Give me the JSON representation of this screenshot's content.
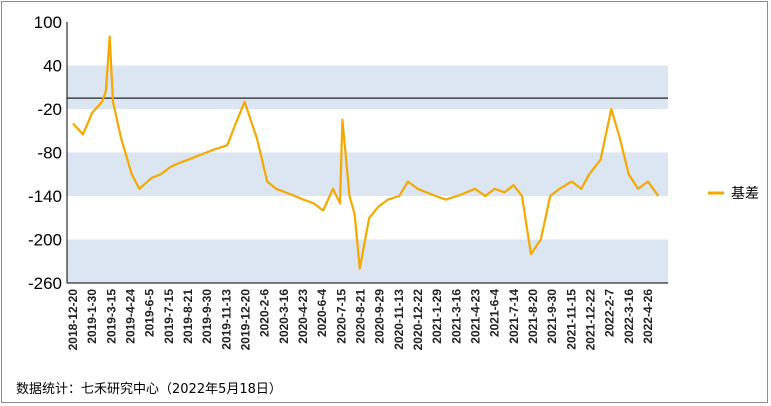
{
  "chart_data": {
    "type": "line",
    "title": "",
    "xlabel": "",
    "ylabel": "",
    "ylim": [
      -260,
      100
    ],
    "y_ticks": [
      100,
      40,
      -20,
      -80,
      -140,
      -200,
      -260
    ],
    "reference_line": -5,
    "shaded_bands": [
      [
        -20,
        40
      ],
      [
        -140,
        -80
      ],
      [
        -260,
        -200
      ]
    ],
    "band_color": "#dce6f2",
    "line_color": "#f5a800",
    "legend_position": "right",
    "x_tick_labels": [
      "2018-12-20",
      "2019-1-30",
      "2019-3-15",
      "2019-4-24",
      "2019-6-5",
      "2019-7-15",
      "2019-8-21",
      "2019-9-30",
      "2019-11-13",
      "2019-12-20",
      "2020-2-6",
      "2020-3-16",
      "2020-4-23",
      "2020-6-4",
      "2020-7-15",
      "2020-8-21",
      "2020-9-29",
      "2020-11-13",
      "2020-12-22",
      "2021-1-29",
      "2021-3-16",
      "2021-4-23",
      "2021-6-4",
      "2021-7-14",
      "2021-8-20",
      "2021-9-30",
      "2021-11-15",
      "2021-12-22",
      "2022-2-7",
      "2022-3-16",
      "2022-4-26"
    ],
    "series": [
      {
        "name": "基差",
        "x": [
          "2018-12-20",
          "2019-1-10",
          "2019-1-30",
          "2019-2-20",
          "2019-2-28",
          "2019-3-8",
          "2019-3-15",
          "2019-4-1",
          "2019-4-24",
          "2019-5-10",
          "2019-6-5",
          "2019-6-25",
          "2019-7-15",
          "2019-8-1",
          "2019-8-21",
          "2019-9-10",
          "2019-9-30",
          "2019-10-20",
          "2019-11-13",
          "2019-12-1",
          "2019-12-20",
          "2020-1-15",
          "2020-2-6",
          "2020-2-25",
          "2020-3-16",
          "2020-4-5",
          "2020-4-23",
          "2020-5-15",
          "2020-6-4",
          "2020-6-25",
          "2020-7-10",
          "2020-7-15",
          "2020-7-30",
          "2020-8-10",
          "2020-8-21",
          "2020-9-10",
          "2020-9-29",
          "2020-10-20",
          "2020-11-13",
          "2020-12-1",
          "2020-12-22",
          "2021-1-10",
          "2021-1-29",
          "2021-2-20",
          "2021-3-16",
          "2021-4-5",
          "2021-4-23",
          "2021-5-15",
          "2021-6-4",
          "2021-6-25",
          "2021-7-14",
          "2021-8-1",
          "2021-8-20",
          "2021-9-10",
          "2021-9-30",
          "2021-10-20",
          "2021-11-15",
          "2021-12-5",
          "2021-12-22",
          "2022-1-15",
          "2022-2-7",
          "2022-2-25",
          "2022-3-16",
          "2022-4-5",
          "2022-4-26",
          "2022-5-18"
        ],
        "values": [
          -40,
          -55,
          -25,
          -10,
          5,
          80,
          -10,
          -60,
          -110,
          -130,
          -115,
          -110,
          -100,
          -95,
          -90,
          -85,
          -80,
          -75,
          -70,
          -40,
          -10,
          -60,
          -120,
          -130,
          -135,
          -140,
          -145,
          -150,
          -160,
          -130,
          -150,
          -35,
          -140,
          -165,
          -240,
          -170,
          -155,
          -145,
          -140,
          -120,
          -130,
          -135,
          -140,
          -145,
          -140,
          -135,
          -130,
          -140,
          -130,
          -135,
          -125,
          -140,
          -220,
          -200,
          -140,
          -130,
          -120,
          -130,
          -110,
          -90,
          -20,
          -60,
          -110,
          -130,
          -120,
          -140
        ]
      }
    ]
  },
  "source_note": "数据统计：七禾研究中心（2022年5月18日）"
}
